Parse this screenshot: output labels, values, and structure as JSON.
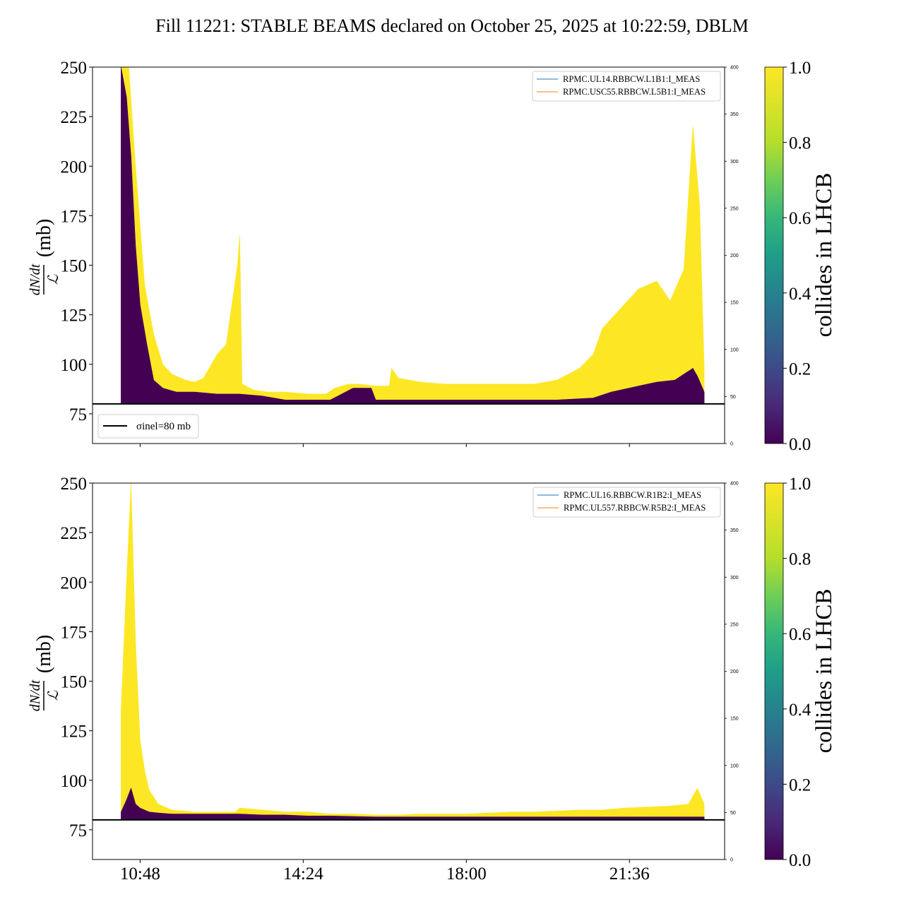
{
  "figure": {
    "title": "Fill 11221: STABLE BEAMS declared on October 25, 2025 at 10:22:59, DBLM",
    "colorbar_label": "collides in LHCB",
    "colormap": [
      "#440154",
      "#3b528b",
      "#21918c",
      "#5ec962",
      "#fde725"
    ],
    "reference_line_label": "σinel=80 mb",
    "ylabel_fraction_top": "dN/dt",
    "ylabel_fraction_bottom": "ℒ",
    "ylabel_unit": "(mb)"
  },
  "chart_data": [
    {
      "type": "line",
      "name": "top",
      "xticks": [
        "10:48",
        "14:24",
        "18:00",
        "21:36"
      ],
      "xtick_hours": [
        10.8,
        14.4,
        18.0,
        21.6
      ],
      "xlim_hours": [
        9.75,
        23.7
      ],
      "data_start_hour": 10.38,
      "data_end_hour": 23.25,
      "ylim": [
        60,
        250
      ],
      "yticks": [
        75,
        100,
        125,
        150,
        175,
        200,
        225,
        250
      ],
      "ytick_labels": [
        "75",
        "100",
        "125",
        "150",
        "175",
        "200",
        "225",
        "250"
      ],
      "y2lim": [
        0,
        400
      ],
      "y2ticks": [
        0,
        50,
        100,
        150,
        200,
        250,
        300,
        350,
        400
      ],
      "y2tick_labels": [
        "0",
        "50",
        "100",
        "150",
        "200",
        "250",
        "300",
        "350",
        "400"
      ],
      "hline": 80,
      "legend_entries": [
        {
          "label": "RPMC.UL14.RBBCW.L1B1:I_MEAS",
          "color": "#1f77b4"
        },
        {
          "label": "RPMC.USC55.RBBCW.L5B1:I_MEAS",
          "color": "#ff7f0e"
        }
      ],
      "colorbar_ticks": [
        "0.0",
        "0.2",
        "0.4",
        "0.6",
        "0.8",
        "1.0"
      ],
      "series": [
        {
          "name": "collides in LHCB = 1",
          "color": "#fde725",
          "x": [
            10.38,
            10.55,
            10.7,
            10.9,
            11.1,
            11.3,
            11.5,
            11.8,
            12.0,
            12.2,
            12.5,
            12.7,
            12.95,
            13.0,
            13.05,
            13.3,
            13.6,
            14.0,
            14.5,
            14.9,
            15.1,
            15.4,
            15.6,
            16.0,
            16.3,
            16.35,
            16.5,
            17.0,
            17.5,
            18.0,
            18.5,
            19.0,
            19.5,
            20.0,
            20.5,
            20.8,
            21.0,
            21.4,
            21.8,
            22.2,
            22.5,
            22.8,
            23.0,
            23.15,
            23.25
          ],
          "upper": [
            250,
            250,
            200,
            140,
            115,
            100,
            95,
            92,
            91,
            93,
            105,
            110,
            150,
            165,
            90,
            87,
            86,
            86,
            85,
            85,
            88,
            90,
            90,
            89,
            89,
            98,
            93,
            91,
            90,
            90,
            90,
            90,
            90,
            92,
            98,
            105,
            118,
            128,
            138,
            142,
            132,
            148,
            220,
            180,
            98
          ],
          "lower": [
            85,
            85,
            83,
            82,
            81,
            81,
            80.5,
            80.5,
            80.5,
            80.5,
            80.5,
            80.5,
            80.5,
            80.5,
            80.5,
            80.5,
            80.5,
            80.5,
            80.5,
            80.5,
            81,
            81,
            81,
            81,
            81,
            81,
            81,
            81,
            81,
            81,
            81,
            81,
            81,
            81,
            81,
            82,
            82,
            83,
            84,
            84,
            84,
            85,
            85,
            85,
            85
          ]
        },
        {
          "name": "collides in LHCB = 0",
          "color": "#440154",
          "x": [
            10.38,
            10.5,
            10.6,
            10.7,
            10.8,
            10.95,
            11.1,
            11.3,
            11.6,
            12.0,
            12.5,
            13.0,
            13.5,
            14.0,
            15.0,
            15.5,
            15.9,
            16.0,
            17.0,
            18.0,
            19.0,
            20.0,
            20.8,
            21.2,
            21.8,
            22.2,
            22.6,
            23.0,
            23.1,
            23.25
          ],
          "upper": [
            250,
            235,
            205,
            160,
            130,
            110,
            92,
            88,
            86,
            86,
            85,
            85,
            84,
            82,
            82,
            88,
            88,
            82,
            82,
            82,
            82,
            82,
            83,
            86,
            89,
            91,
            92,
            98,
            94,
            86
          ],
          "lower": [
            80,
            80,
            80,
            80,
            80,
            80,
            80,
            80,
            80,
            80,
            80,
            80,
            80,
            80,
            80,
            80,
            80,
            80,
            80,
            80,
            80,
            80,
            80,
            80,
            80,
            80,
            80,
            80,
            80,
            80
          ]
        }
      ]
    },
    {
      "type": "line",
      "name": "bottom",
      "xticks": [
        "10:48",
        "14:24",
        "18:00",
        "21:36"
      ],
      "xtick_hours": [
        10.8,
        14.4,
        18.0,
        21.6
      ],
      "xlim_hours": [
        9.75,
        23.7
      ],
      "data_start_hour": 10.38,
      "data_end_hour": 23.25,
      "ylim": [
        60,
        250
      ],
      "yticks": [
        75,
        100,
        125,
        150,
        175,
        200,
        225,
        250
      ],
      "ytick_labels": [
        "75",
        "100",
        "125",
        "150",
        "175",
        "200",
        "225",
        "250"
      ],
      "y2lim": [
        0,
        400
      ],
      "y2ticks": [
        0,
        50,
        100,
        150,
        200,
        250,
        300,
        350,
        400
      ],
      "y2tick_labels": [
        "0",
        "50",
        "100",
        "150",
        "200",
        "250",
        "300",
        "350",
        "400"
      ],
      "hline": 80,
      "legend_entries": [
        {
          "label": "RPMC.UL16.RBBCW.R1B2:I_MEAS",
          "color": "#1f77b4"
        },
        {
          "label": "RPMC.UL557.RBBCW.R5B2:I_MEAS",
          "color": "#ff7f0e"
        }
      ],
      "colorbar_ticks": [
        "0.0",
        "0.2",
        "0.4",
        "0.6",
        "0.8",
        "1.0"
      ],
      "series": [
        {
          "name": "collides in LHCB = 1",
          "color": "#fde725",
          "x": [
            10.38,
            10.5,
            10.6,
            10.7,
            10.8,
            10.9,
            11.0,
            11.2,
            11.5,
            12.0,
            12.5,
            12.9,
            13.0,
            13.5,
            14.0,
            14.5,
            15.0,
            15.5,
            16.0,
            16.5,
            17.0,
            17.5,
            18.0,
            18.5,
            19.0,
            19.5,
            20.0,
            20.5,
            21.0,
            21.5,
            22.0,
            22.5,
            22.9,
            23.1,
            23.25
          ],
          "upper": [
            135,
            200,
            250,
            170,
            120,
            105,
            95,
            88,
            85,
            84,
            84,
            84,
            86,
            85,
            84,
            84,
            83,
            83,
            82.5,
            82.5,
            83,
            83,
            83,
            83.5,
            84,
            84,
            84.5,
            85,
            85,
            86,
            86.5,
            87,
            88,
            96,
            88
          ],
          "lower": [
            81,
            81,
            81,
            81,
            80.5,
            80.5,
            80.5,
            80.5,
            80.5,
            80.5,
            80.5,
            80.5,
            80.5,
            80.5,
            80.5,
            80.5,
            80.5,
            80.5,
            80.5,
            80.5,
            80.5,
            80.5,
            80.5,
            80.5,
            80.5,
            80.5,
            80.5,
            80.5,
            80.5,
            80.5,
            80.5,
            80.5,
            80.5,
            80.5,
            80.5
          ]
        },
        {
          "name": "collides in LHCB = 0",
          "color": "#440154",
          "x": [
            10.38,
            10.5,
            10.6,
            10.7,
            10.8,
            10.9,
            11.0,
            11.2,
            11.5,
            12.0,
            12.5,
            13.0,
            13.5,
            14.0,
            14.5,
            15.0,
            16.0,
            17.0,
            18.0,
            19.0,
            20.0,
            21.0,
            22.0,
            23.0,
            23.25
          ],
          "upper": [
            84,
            90,
            96,
            88,
            86,
            85,
            84,
            83.5,
            83,
            83,
            83,
            83,
            82.5,
            82.5,
            82,
            82,
            81.5,
            81.5,
            81.5,
            81.5,
            81.5,
            81.5,
            81.5,
            81.5,
            81.5
          ],
          "lower": [
            80,
            80,
            80,
            80,
            80,
            80,
            80,
            80,
            80,
            80,
            80,
            80,
            80,
            80,
            80,
            80,
            80,
            80,
            80,
            80,
            80,
            80,
            80,
            80,
            80
          ]
        }
      ]
    }
  ]
}
